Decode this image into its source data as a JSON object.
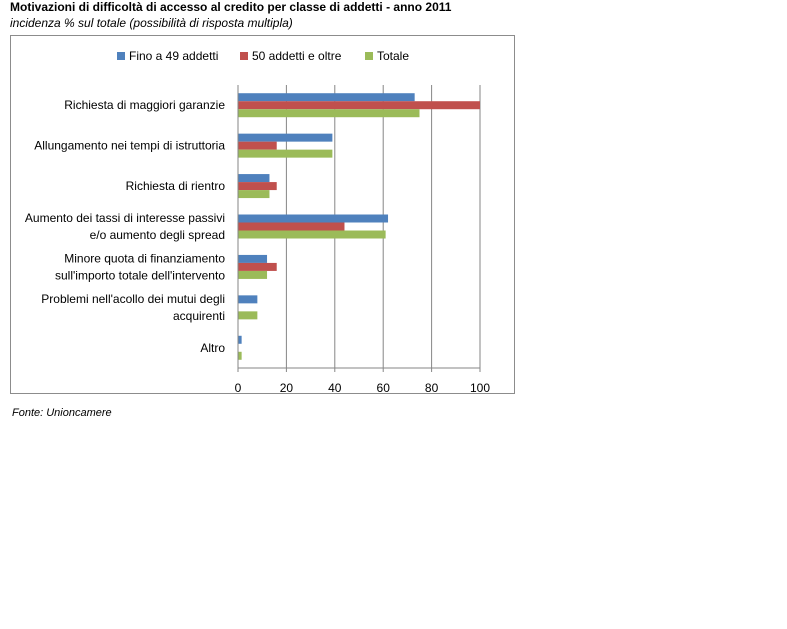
{
  "header": {
    "title": "Motivazioni di difficoltà di accesso al credito per classe di addetti - anno 2011",
    "subtitle": "incidenza % sul totale (possibilità di risposta multipla)"
  },
  "footer": {
    "source": "Fonte: Unioncamere"
  },
  "chart_data": {
    "type": "bar",
    "orientation": "horizontal",
    "categories": [
      [
        "Richiesta di maggiori garanzie"
      ],
      [
        "Allungamento nei tempi di istruttoria"
      ],
      [
        "Richiesta di rientro"
      ],
      [
        "Aumento dei tassi di interesse passivi",
        "e/o aumento degli spread"
      ],
      [
        "Minore quota di finanziamento",
        "sull'importo totale dell'intervento"
      ],
      [
        "Problemi nell'acollo dei mutui degli",
        "acquirenti"
      ],
      [
        "Altro"
      ]
    ],
    "series": [
      {
        "name": "Fino a 49 addetti",
        "color": "#4f81bd",
        "values": [
          73,
          39,
          13,
          62,
          12,
          8,
          1.5
        ]
      },
      {
        "name": "50 addetti e oltre",
        "color": "#c0504d",
        "values": [
          100,
          16,
          16,
          44,
          16,
          0,
          0
        ]
      },
      {
        "name": "Totale",
        "color": "#9bbb59",
        "values": [
          75,
          39,
          13,
          61,
          12,
          8,
          1.5
        ]
      }
    ],
    "xlim": [
      0,
      100
    ],
    "xticks": [
      0,
      20,
      40,
      60,
      80,
      100
    ],
    "grid": true,
    "legend_position": "top"
  }
}
